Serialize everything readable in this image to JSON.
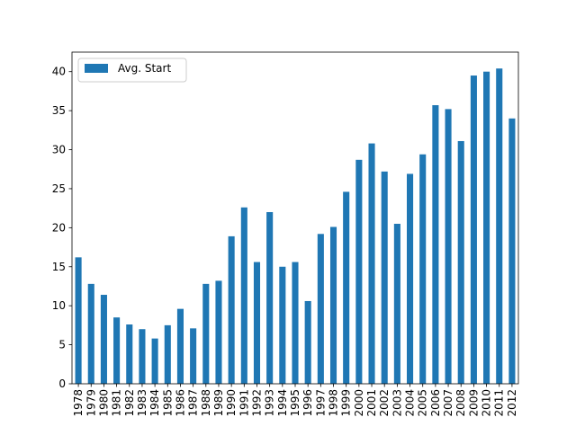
{
  "chart_data": {
    "type": "bar",
    "title": "",
    "xlabel": "",
    "ylabel": "",
    "ylim": [
      0,
      42.5
    ],
    "yticks": [
      0,
      5,
      10,
      15,
      20,
      25,
      30,
      35,
      40
    ],
    "grid": false,
    "legend": {
      "placement": "top-left"
    },
    "categories": [
      "1978",
      "1979",
      "1980",
      "1981",
      "1982",
      "1983",
      "1984",
      "1985",
      "1986",
      "1987",
      "1988",
      "1989",
      "1990",
      "1991",
      "1992",
      "1993",
      "1994",
      "1995",
      "1996",
      "1997",
      "1998",
      "1999",
      "2000",
      "2001",
      "2002",
      "2003",
      "2004",
      "2005",
      "2006",
      "2007",
      "2008",
      "2009",
      "2010",
      "2011",
      "2012"
    ],
    "series": [
      {
        "name": "Avg. Start",
        "color": "#1f77b4",
        "values": [
          16.2,
          12.8,
          11.4,
          8.5,
          7.6,
          7.0,
          5.8,
          7.5,
          9.6,
          7.1,
          12.8,
          13.2,
          18.9,
          22.6,
          15.6,
          22.0,
          15.0,
          15.6,
          10.6,
          19.2,
          20.1,
          24.6,
          28.7,
          30.8,
          27.2,
          20.5,
          26.9,
          29.4,
          35.7,
          35.2,
          31.1,
          39.5,
          40.0,
          40.4,
          34.0
        ]
      }
    ]
  }
}
